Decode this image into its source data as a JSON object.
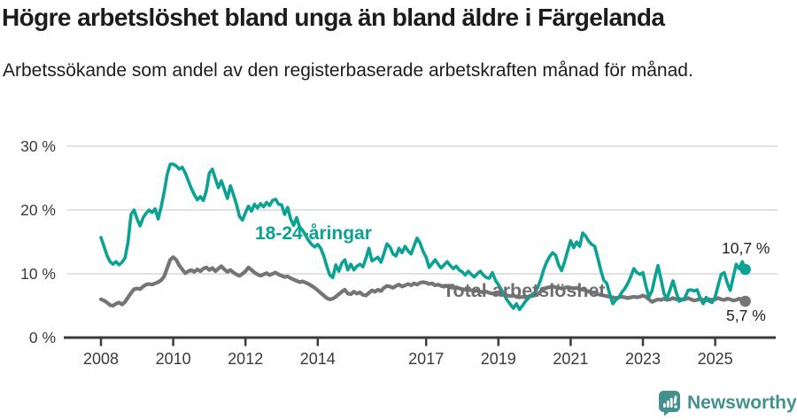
{
  "header": {
    "title": "Högre arbetslöshet bland unga än bland äldre i Färgelanda",
    "subtitle": "Arbetssökande som andel av den registerbaserade arbetskraften månad för månad."
  },
  "footer": {
    "brand": "Newsworthy",
    "brand_color": "#43918e"
  },
  "chart_data": {
    "type": "line",
    "frequency": "monthly",
    "start_year": 2008,
    "end_point": "2025-11",
    "ylim": [
      0,
      30
    ],
    "grid": "horizontal",
    "x_tick_years": [
      2008,
      2010,
      2012,
      2014,
      2017,
      2019,
      2021,
      2023,
      2025
    ],
    "y_ticks": [
      {
        "value": 0,
        "label": "0 %"
      },
      {
        "value": 10,
        "label": "10 %"
      },
      {
        "value": 20,
        "label": "20 %"
      },
      {
        "value": 30,
        "label": "30 %"
      }
    ],
    "series": [
      {
        "name": "18-24-åringar",
        "color": "#0ba294",
        "end_label": "10,7 %",
        "end_value": 10.7,
        "values": [
          15.7,
          14.3,
          12.9,
          11.9,
          11.5,
          11.9,
          11.4,
          11.8,
          12.5,
          15.0,
          19.3,
          20.0,
          18.6,
          17.5,
          18.8,
          19.5,
          20.0,
          19.6,
          20.2,
          18.6,
          20.5,
          22.8,
          25.6,
          27.2,
          27.2,
          26.9,
          26.4,
          26.7,
          25.8,
          24.6,
          23.4,
          22.4,
          21.6,
          22.1,
          21.5,
          23.0,
          25.8,
          26.4,
          24.9,
          23.5,
          24.6,
          23.2,
          21.8,
          23.8,
          22.4,
          20.9,
          19.0,
          18.4,
          19.6,
          20.6,
          19.8,
          20.9,
          20.3,
          21.0,
          20.5,
          21.2,
          20.7,
          21.5,
          21.7,
          20.9,
          20.8,
          19.3,
          20.4,
          18.6,
          17.6,
          18.8,
          17.3,
          16.8,
          16.0,
          15.2,
          14.6,
          14.2,
          14.6,
          14.0,
          12.8,
          11.2,
          9.8,
          9.4,
          11.4,
          10.4,
          11.7,
          12.2,
          10.6,
          11.5,
          10.6,
          11.2,
          11.5,
          11.1,
          12.4,
          14.0,
          12.0,
          12.3,
          12.6,
          11.8,
          13.2,
          14.7,
          14.2,
          13.1,
          12.8,
          14.0,
          13.3,
          14.3,
          13.6,
          13.1,
          14.4,
          15.6,
          14.8,
          13.5,
          12.6,
          11.0,
          11.6,
          12.2,
          11.5,
          10.9,
          11.4,
          11.9,
          11.3,
          10.8,
          11.2,
          10.6,
          10.3,
          9.8,
          10.4,
          9.9,
          9.5,
          10.0,
          10.4,
          9.8,
          9.4,
          9.3,
          10.2,
          9.0,
          8.3,
          7.5,
          6.6,
          5.8,
          5.2,
          4.6,
          5.3,
          4.4,
          5.0,
          5.7,
          6.2,
          6.7,
          7.0,
          7.8,
          9.0,
          10.6,
          11.8,
          12.7,
          13.3,
          12.9,
          11.4,
          10.5,
          11.9,
          13.6,
          15.2,
          14.1,
          15.0,
          14.3,
          16.4,
          15.9,
          15.1,
          14.6,
          14.3,
          12.5,
          10.6,
          9.0,
          8.5,
          6.8,
          5.3,
          5.9,
          6.3,
          7.1,
          7.7,
          8.5,
          9.6,
          10.8,
          10.2,
          9.9,
          10.2,
          8.1,
          6.4,
          7.3,
          9.4,
          11.3,
          9.2,
          6.9,
          6.1,
          7.5,
          8.9,
          7.2,
          5.7,
          5.9,
          6.3,
          7.4,
          7.5,
          7.3,
          7.5,
          6.2,
          5.3,
          6.3,
          5.7,
          5.5,
          6.4,
          8.2,
          9.9,
          10.2,
          8.6,
          7.4,
          9.5,
          11.5,
          10.8,
          11.9,
          10.7
        ]
      },
      {
        "name": "Total arbetslöshet",
        "color": "#757575",
        "end_label": "5,7 %",
        "end_value": 5.7,
        "values": [
          6.0,
          5.8,
          5.5,
          5.1,
          5.0,
          5.3,
          5.5,
          5.2,
          5.6,
          6.3,
          7.0,
          7.6,
          7.7,
          7.6,
          8.0,
          8.3,
          8.4,
          8.3,
          8.5,
          8.7,
          9.0,
          9.6,
          10.9,
          12.2,
          12.6,
          12.2,
          11.3,
          10.7,
          10.1,
          10.4,
          10.6,
          10.3,
          10.7,
          10.4,
          10.8,
          11.0,
          10.6,
          10.9,
          10.4,
          10.8,
          11.2,
          10.7,
          10.3,
          10.6,
          10.2,
          9.9,
          9.7,
          10.0,
          10.4,
          11.0,
          10.6,
          10.2,
          9.9,
          9.7,
          9.9,
          10.1,
          9.8,
          10.0,
          10.2,
          9.9,
          9.7,
          9.5,
          9.6,
          9.3,
          9.1,
          8.9,
          8.7,
          8.8,
          8.6,
          8.4,
          8.1,
          7.8,
          7.4,
          7.0,
          6.6,
          6.2,
          6.0,
          6.1,
          6.4,
          6.8,
          7.2,
          7.5,
          6.9,
          6.8,
          7.2,
          6.9,
          7.1,
          6.7,
          6.6,
          7.0,
          7.4,
          7.2,
          7.5,
          7.3,
          7.8,
          8.1,
          8.0,
          7.8,
          8.1,
          8.3,
          8.0,
          8.2,
          8.4,
          8.2,
          8.5,
          8.3,
          8.6,
          8.7,
          8.6,
          8.4,
          8.5,
          8.2,
          8.3,
          8.1,
          8.0,
          8.1,
          7.9,
          7.8,
          7.9,
          7.7,
          7.6,
          7.5,
          7.6,
          7.4,
          7.3,
          7.4,
          7.2,
          7.1,
          7.2,
          7.0,
          6.9,
          7.0,
          6.8,
          6.7,
          6.8,
          6.6,
          6.5,
          6.6,
          6.4,
          6.3,
          6.4,
          6.3,
          6.4,
          6.5,
          6.6,
          6.8,
          7.2,
          7.6,
          7.8,
          7.9,
          8.0,
          7.9,
          7.8,
          7.7,
          7.8,
          7.9,
          7.8,
          7.7,
          7.8,
          7.6,
          7.5,
          7.4,
          7.2,
          7.1,
          7.0,
          6.8,
          6.7,
          6.6,
          6.5,
          6.4,
          6.3,
          6.2,
          6.3,
          6.4,
          6.3,
          6.2,
          6.3,
          6.4,
          6.3,
          6.4,
          6.6,
          6.4,
          6.0,
          5.6,
          5.8,
          6.0,
          5.9,
          6.1,
          5.9,
          6.0,
          6.2,
          6.0,
          6.1,
          5.9,
          6.0,
          6.2,
          6.0,
          5.8,
          5.9,
          6.1,
          5.9,
          5.8,
          6.0,
          5.9,
          6.0,
          6.2,
          6.0,
          5.9,
          6.1,
          6.0,
          5.8,
          5.9,
          6.1,
          5.9,
          5.7
        ]
      }
    ]
  }
}
